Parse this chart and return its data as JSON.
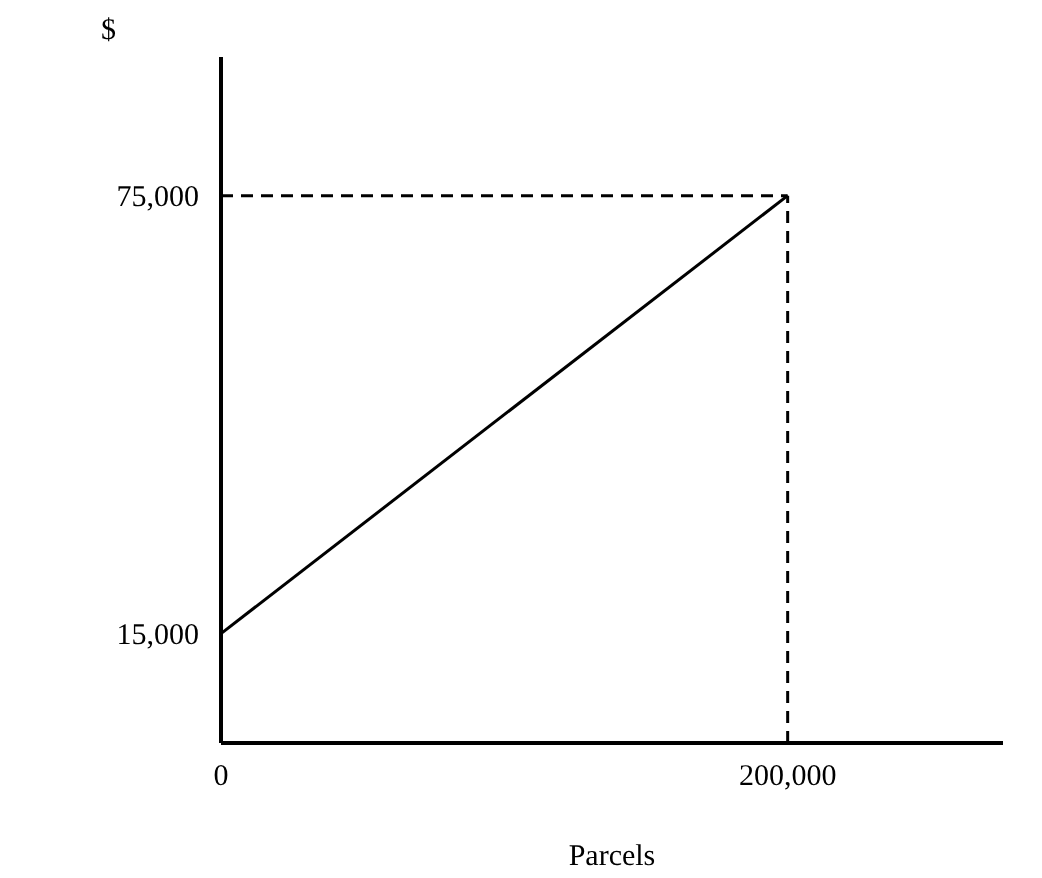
{
  "chart_data": {
    "type": "line",
    "xlabel": "Parcels",
    "ylabel": "$",
    "x": [
      0,
      200000
    ],
    "series": [
      {
        "color": "#000000",
        "values": [
          15000,
          75000
        ]
      }
    ],
    "xlim": [
      0,
      276000
    ],
    "ylim": [
      0,
      94000
    ],
    "xticks": [
      0,
      {
        "value": 200000,
        "label": "200,000"
      }
    ],
    "yticks": [
      {
        "value": 15000,
        "label": "15,000"
      },
      {
        "value": 75000,
        "label": "75,000"
      }
    ],
    "ref_lines": [
      {
        "axis": "y",
        "value": 75000,
        "line_style": "dashed",
        "color": "#000000"
      },
      {
        "axis": "x",
        "value": 200000,
        "line_style": "dashed",
        "color": "#000000"
      }
    ],
    "line_style": "solid"
  }
}
